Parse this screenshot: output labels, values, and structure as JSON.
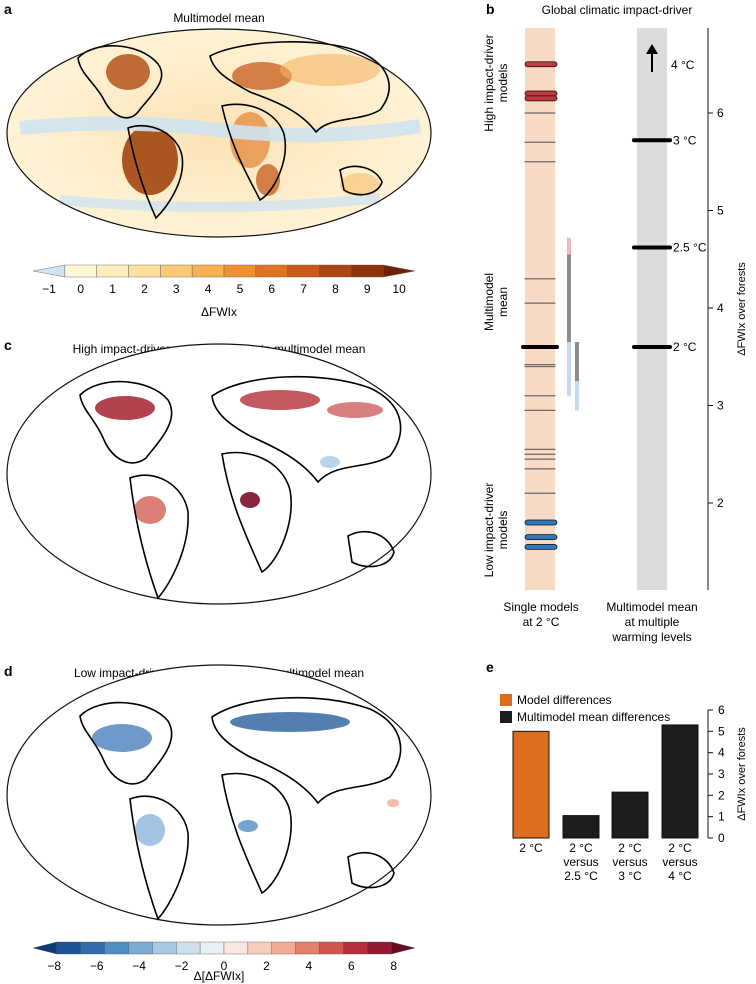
{
  "panels": {
    "a": {
      "letter": "a",
      "title": "Multimodel mean"
    },
    "b": {
      "letter": "b",
      "title": "Global climatic impact-driver"
    },
    "c": {
      "letter": "c",
      "title": "High impact-driver models, relative to multimodel mean"
    },
    "d": {
      "letter": "d",
      "title": "Low impact-driver models, relative to multimodel mean"
    },
    "e": {
      "letter": "e"
    }
  },
  "colorbars": {
    "a": {
      "label": "ΔFWIx",
      "ticks": [
        "−1",
        "0",
        "1",
        "2",
        "3",
        "4",
        "5",
        "6",
        "7",
        "8",
        "9",
        "10"
      ],
      "colors": [
        "#cfe3f0",
        "#fff8d8",
        "#fdeebb",
        "#fde09a",
        "#fcca74",
        "#f9b050",
        "#f19032",
        "#e07322",
        "#cb5918",
        "#b04412",
        "#91320c",
        "#6e2209"
      ]
    },
    "d": {
      "label": "Δ[ΔFWIx]",
      "ticks": [
        "−8",
        "−6",
        "−4",
        "−2",
        "0",
        "2",
        "4",
        "6",
        "8"
      ],
      "colors": [
        "#0b3b78",
        "#1a5496",
        "#2f6fb0",
        "#4f8ec5",
        "#79acd6",
        "#a6c9e4",
        "#cde0ee",
        "#e9f0f5",
        "#f8e7e0",
        "#f7cdbd",
        "#f1ab93",
        "#e3806a",
        "#d0554a",
        "#b52f39",
        "#951a30",
        "#6b0a25"
      ]
    }
  },
  "chart_data": [
    {
      "panel": "b",
      "type": "scatter",
      "title": "Global climatic impact-driver",
      "ylabel": "ΔFWIx over forests",
      "yticks": [
        2,
        3,
        4,
        5,
        6
      ],
      "columns": [
        "Single models\nat 2 °C",
        "Multimodel mean\nat multiple\nwarming levels"
      ],
      "group_labels": {
        "high": "High impact-driver\nmodels",
        "mean": "Multimodel\nmean",
        "low": "Low impact-driver\nmodels"
      },
      "single_models": {
        "high": [
          6.5,
          6.2,
          6.15
        ],
        "others": [
          6.0,
          5.7,
          5.5,
          4.3,
          4.05,
          3.42,
          3.4,
          3.1,
          2.95,
          2.55,
          2.5,
          2.45,
          2.35,
          2.1
        ],
        "multimodel_mean": 3.6,
        "low": [
          1.8,
          1.65,
          1.55
        ]
      },
      "spread_bars": [
        {
          "low": 3.1,
          "high": 4.55,
          "core_low": 3.65,
          "core_high": 4.55,
          "top_tint_high": 4.72,
          "bottom_tint_low": 3.1
        },
        {
          "low": 2.95,
          "high": 3.8,
          "core_low": 3.25,
          "core_high": 3.65,
          "top_tint_high": 3.8,
          "bottom_tint_low": 2.95
        }
      ],
      "warming_levels": [
        {
          "label": "2 °C",
          "value": 3.6
        },
        {
          "label": "2.5 °C",
          "value": 4.62
        },
        {
          "label": "3 °C",
          "value": 5.72
        },
        {
          "label": "4 °C",
          "value": null,
          "arrow": true
        }
      ],
      "colors": {
        "high": "#c0393f",
        "low": "#2f78be",
        "band_left": "#f8d9c4",
        "band_right": "#dcdcdc"
      }
    },
    {
      "panel": "e",
      "type": "bar",
      "ylabel": "ΔFWIx over forests",
      "ylim": [
        0,
        6
      ],
      "yticks": [
        0,
        1,
        2,
        3,
        4,
        5,
        6
      ],
      "categories": [
        "2 °C",
        "2 °C\nversus\n2.5 °C",
        "2 °C\nversus\n3 °C",
        "2 °C\nversus\n4 °C"
      ],
      "values": [
        5.0,
        1.05,
        2.15,
        5.3
      ],
      "series_of_bar": [
        "Model differences",
        "Multimodel mean differences",
        "Multimodel mean differences",
        "Multimodel mean differences"
      ],
      "legend": [
        {
          "name": "Model differences",
          "color": "#dd6e1d"
        },
        {
          "name": "Multimodel mean differences",
          "color": "#1c1c1c"
        }
      ]
    }
  ]
}
